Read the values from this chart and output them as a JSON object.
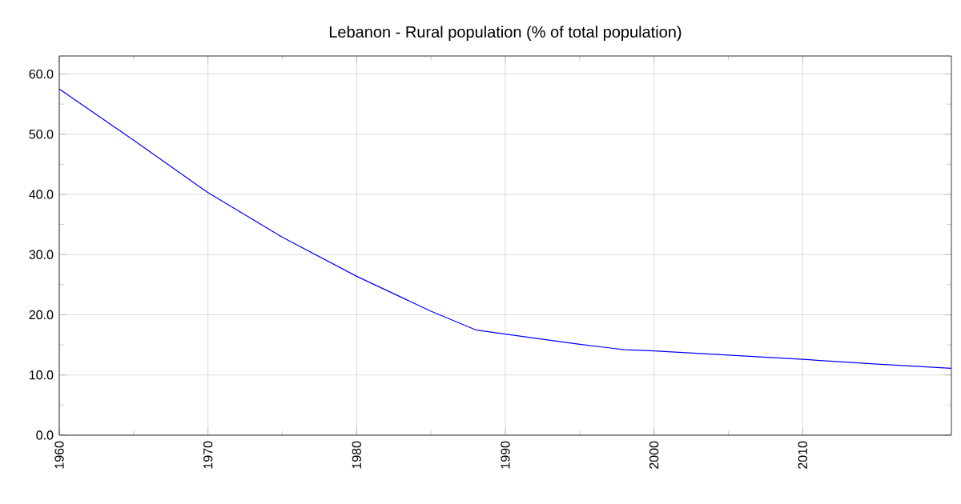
{
  "chart_data": {
    "type": "line",
    "title": "Lebanon - Rural population (% of total population)",
    "series": [
      {
        "color": "#0000ff",
        "x": [
          1960,
          1965,
          1970,
          1975,
          1980,
          1985,
          1988,
          1990,
          1995,
          1998,
          2000,
          2005,
          2010,
          2015,
          2020
        ],
        "values": [
          57.5,
          49.0,
          40.3,
          32.9,
          26.4,
          20.6,
          17.5,
          16.8,
          15.1,
          14.2,
          14.0,
          13.3,
          12.6,
          11.8,
          11.1
        ]
      }
    ],
    "xlim": [
      1960,
      2020
    ],
    "xticks": [
      1960,
      1970,
      1980,
      1990,
      2000,
      2010
    ],
    "ylim": [
      0,
      63
    ],
    "yticks": [
      {
        "value": 0,
        "label": "0.0"
      },
      {
        "value": 10,
        "label": "10.0"
      },
      {
        "value": 20,
        "label": "20.0"
      },
      {
        "value": 30,
        "label": "30.0"
      },
      {
        "value": 40,
        "label": "40.0"
      },
      {
        "value": 50,
        "label": "50.0"
      },
      {
        "value": 60,
        "label": "60.0"
      }
    ],
    "grid": true,
    "marker": "none",
    "line_style": "solid"
  }
}
